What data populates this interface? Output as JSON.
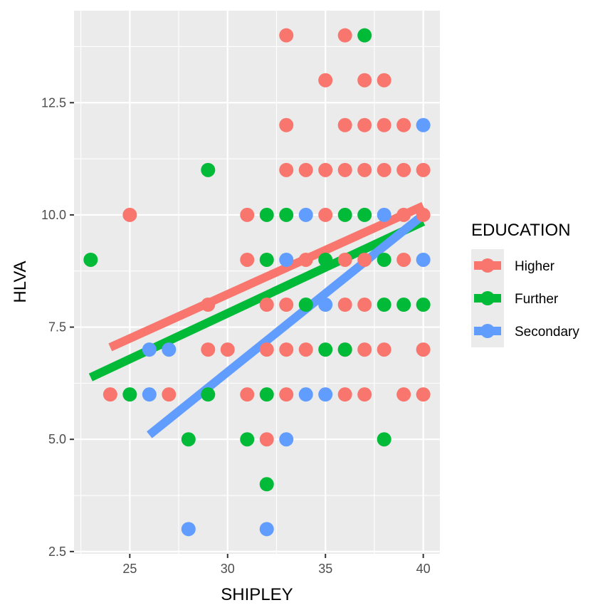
{
  "chart_data": {
    "type": "scatter",
    "title": "",
    "xlabel": "SHIPLEY",
    "ylabel": "HLVA",
    "xlim": [
      22.15,
      40.85
    ],
    "ylim": [
      2.45,
      14.55
    ],
    "x_ticks": [
      25,
      30,
      35,
      40
    ],
    "x_tick_labels": [
      "25",
      "30",
      "35",
      "40"
    ],
    "y_ticks": [
      2.5,
      5.0,
      7.5,
      10.0,
      12.5
    ],
    "y_tick_labels": [
      "2.5",
      "5.0",
      "7.5",
      "10.0",
      "12.5"
    ],
    "grid": true,
    "legend": {
      "title": "EDUCATION",
      "position": "right",
      "entries": [
        "Higher",
        "Further",
        "Secondary"
      ]
    },
    "series": [
      {
        "name": "Higher",
        "color": "#F8766D",
        "points": [
          [
            24,
            6
          ],
          [
            25,
            10
          ],
          [
            27,
            6
          ],
          [
            29,
            8
          ],
          [
            29,
            7
          ],
          [
            30,
            7
          ],
          [
            31,
            10
          ],
          [
            31,
            9
          ],
          [
            31,
            6
          ],
          [
            32,
            8
          ],
          [
            32,
            7
          ],
          [
            32,
            5
          ],
          [
            33,
            14
          ],
          [
            33,
            12
          ],
          [
            33,
            11
          ],
          [
            33,
            8
          ],
          [
            33,
            7
          ],
          [
            33,
            6
          ],
          [
            34,
            11
          ],
          [
            34,
            9
          ],
          [
            34,
            7
          ],
          [
            35,
            13
          ],
          [
            35,
            11
          ],
          [
            35,
            10
          ],
          [
            36,
            14
          ],
          [
            36,
            12
          ],
          [
            36,
            11
          ],
          [
            36,
            9
          ],
          [
            36,
            8
          ],
          [
            36,
            7
          ],
          [
            36,
            6
          ],
          [
            37,
            13
          ],
          [
            37,
            12
          ],
          [
            37,
            11
          ],
          [
            37,
            9
          ],
          [
            37,
            8
          ],
          [
            37,
            7
          ],
          [
            37,
            6
          ],
          [
            38,
            13
          ],
          [
            38,
            12
          ],
          [
            38,
            11
          ],
          [
            38,
            7
          ],
          [
            39,
            12
          ],
          [
            39,
            11
          ],
          [
            39,
            10
          ],
          [
            39,
            9
          ],
          [
            39,
            6
          ],
          [
            40,
            11
          ],
          [
            40,
            10
          ],
          [
            40,
            7
          ],
          [
            40,
            6
          ]
        ],
        "trend": {
          "x": [
            24,
            40
          ],
          "y": [
            7.05,
            10.2
          ]
        }
      },
      {
        "name": "Further",
        "color": "#00BA38",
        "points": [
          [
            23,
            9
          ],
          [
            25,
            6
          ],
          [
            28,
            5
          ],
          [
            29,
            11
          ],
          [
            29,
            6
          ],
          [
            31,
            5
          ],
          [
            32,
            10
          ],
          [
            32,
            9
          ],
          [
            32,
            6
          ],
          [
            32,
            4
          ],
          [
            33,
            10
          ],
          [
            34,
            8
          ],
          [
            35,
            9
          ],
          [
            35,
            7
          ],
          [
            36,
            10
          ],
          [
            36,
            7
          ],
          [
            37,
            14
          ],
          [
            37,
            10
          ],
          [
            38,
            9
          ],
          [
            38,
            8
          ],
          [
            38,
            5
          ],
          [
            39,
            8
          ],
          [
            40,
            8
          ]
        ],
        "trend": {
          "x": [
            23,
            40
          ],
          "y": [
            6.38,
            9.85
          ]
        }
      },
      {
        "name": "Secondary",
        "color": "#619CFF",
        "points": [
          [
            26,
            7
          ],
          [
            26,
            6
          ],
          [
            27,
            7
          ],
          [
            28,
            3
          ],
          [
            32,
            3
          ],
          [
            33,
            9
          ],
          [
            33,
            5
          ],
          [
            34,
            10
          ],
          [
            34,
            6
          ],
          [
            35,
            8
          ],
          [
            35,
            6
          ],
          [
            38,
            10
          ],
          [
            40,
            12
          ],
          [
            40,
            9
          ]
        ],
        "trend": {
          "x": [
            26,
            40
          ],
          "y": [
            5.1,
            10.0
          ]
        }
      }
    ]
  }
}
